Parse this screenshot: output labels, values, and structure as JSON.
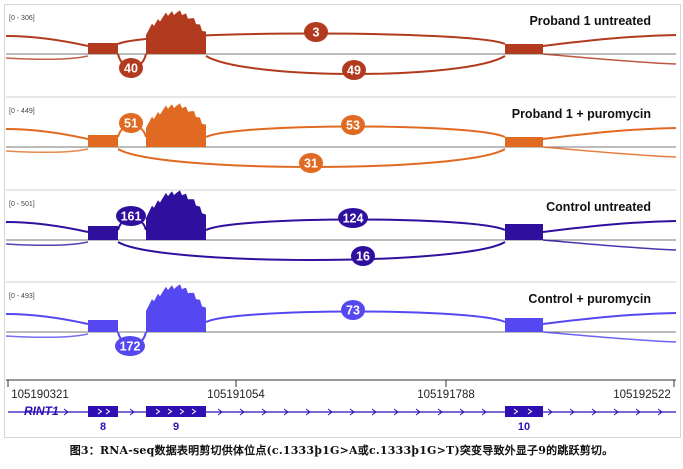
{
  "tracks": [
    {
      "range_label": "[0 - 306]",
      "title": "Proband 1 untreated",
      "color": "#b23a1e",
      "junctions": {
        "upper_short": "",
        "upper_long": "3",
        "lower_short": "40",
        "lower_long": "49"
      }
    },
    {
      "range_label": "[0 - 449]",
      "title": "Proband 1 + puromycin",
      "color": "#e06a22",
      "junctions": {
        "upper_short": "51",
        "upper_long": "53",
        "lower_short": "",
        "lower_long": "31"
      }
    },
    {
      "range_label": "[0 - 501]",
      "title": "Control untreated",
      "color": "#2f0f9e",
      "junctions": {
        "upper_short": "161",
        "upper_long": "124",
        "lower_short": "",
        "lower_long": "16"
      }
    },
    {
      "range_label": "[0 - 493]",
      "title": "Control + puromycin",
      "color": "#5548f0",
      "junctions": {
        "upper_short": "",
        "upper_long": "73",
        "lower_short": "172",
        "lower_long": ""
      }
    }
  ],
  "axis": {
    "ticks": [
      "105190321",
      "105191054",
      "105191788",
      "105192522"
    ]
  },
  "gene": {
    "name": "RINT1",
    "color": "#2f0fb4",
    "exons": [
      "8",
      "9",
      "10"
    ]
  },
  "caption": "图3：RNA-seq数据表明剪切供体位点(c.1333þ1G>A或c.1333þ1G>T)突变导致外显子9的跳跃剪切。"
}
